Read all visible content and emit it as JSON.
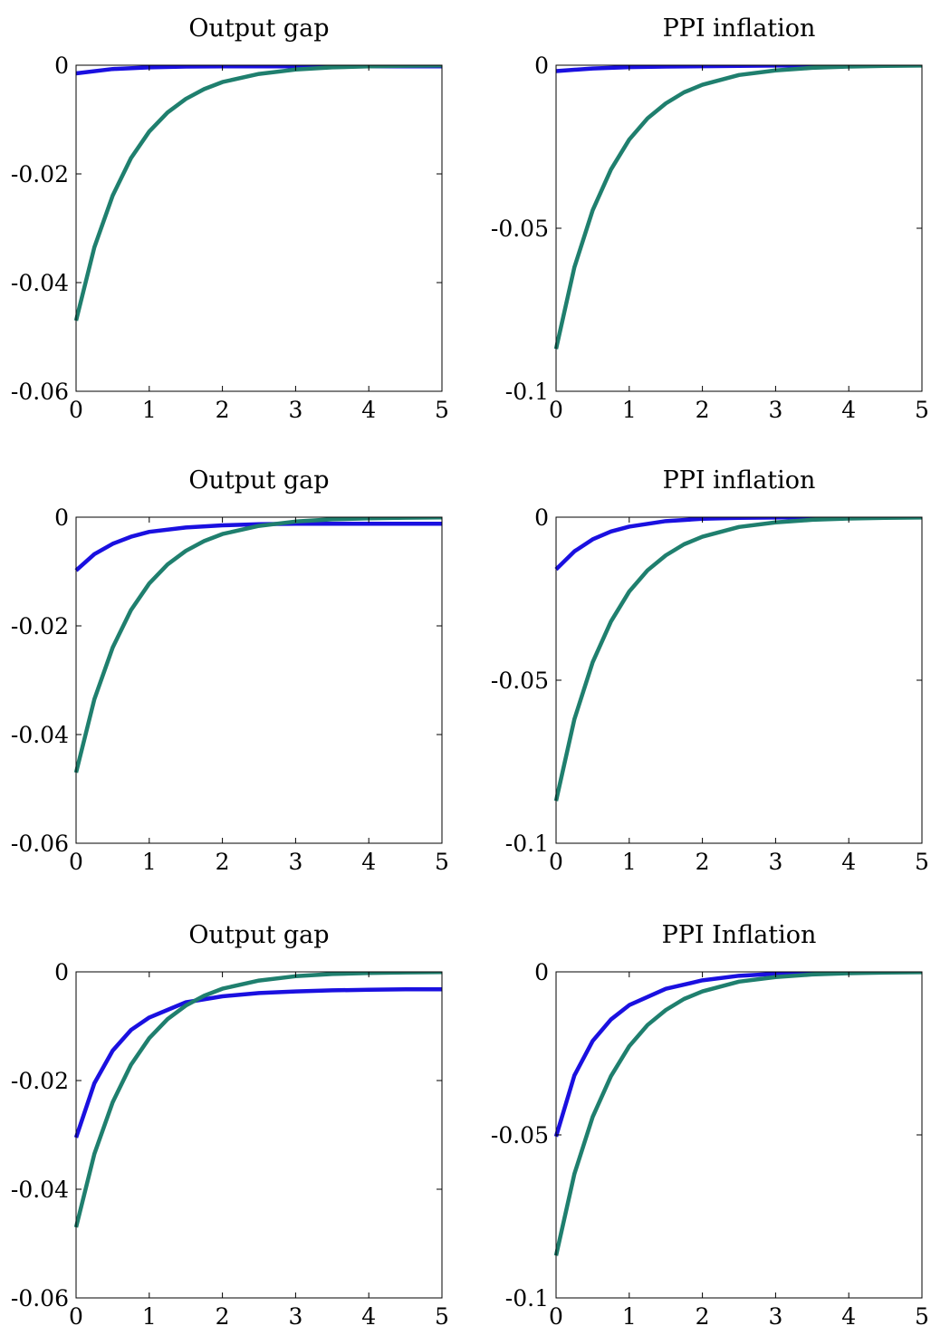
{
  "chart_data": [
    {
      "type": "line",
      "title": "Output gap",
      "xlim": [
        0,
        5
      ],
      "ylim": [
        -0.06,
        0
      ],
      "xticks": [
        "0",
        "1",
        "2",
        "3",
        "4",
        "5"
      ],
      "yticks": [
        "0",
        "-0.02",
        "-0.04",
        "-0.06"
      ],
      "series": [
        {
          "color": "#1a10e0",
          "x": [
            0,
            0.5,
            1,
            1.5,
            2,
            2.5,
            3,
            3.5,
            4,
            4.5,
            5
          ],
          "y": [
            -0.0015,
            -0.0007,
            -0.0004,
            -0.00025,
            -0.0002,
            -0.0002,
            -0.0002,
            -0.0002,
            -0.0002,
            -0.0002,
            -0.0002
          ]
        },
        {
          "color": "#1f7f6e",
          "x": [
            0,
            0.25,
            0.5,
            0.75,
            1,
            1.25,
            1.5,
            1.75,
            2,
            2.5,
            3,
            3.5,
            4,
            4.5,
            5
          ],
          "y": [
            -0.047,
            -0.0335,
            -0.024,
            -0.0171,
            -0.0122,
            -0.0087,
            -0.0062,
            -0.0044,
            -0.0031,
            -0.0016,
            -0.0008,
            -0.0004,
            -0.0002,
            -0.0001,
            -5e-05
          ]
        }
      ]
    },
    {
      "type": "line",
      "title": "PPI inflation",
      "xlim": [
        0,
        5
      ],
      "ylim": [
        -0.1,
        0
      ],
      "xticks": [
        "0",
        "1",
        "2",
        "3",
        "4",
        "5"
      ],
      "yticks": [
        "0",
        "-0.05",
        "-0.1"
      ],
      "series": [
        {
          "color": "#1a10e0",
          "x": [
            0,
            0.5,
            1,
            1.5,
            2,
            2.5,
            3,
            3.5,
            4,
            4.5,
            5
          ],
          "y": [
            -0.0018,
            -0.001,
            -0.0006,
            -0.0004,
            -0.0003,
            -0.0002,
            -0.0001,
            -0.0001,
            0,
            0,
            0
          ]
        },
        {
          "color": "#1f7f6e",
          "x": [
            0,
            0.25,
            0.5,
            0.75,
            1,
            1.25,
            1.5,
            1.75,
            2,
            2.5,
            3,
            3.5,
            4,
            4.5,
            5
          ],
          "y": [
            -0.087,
            -0.062,
            -0.0445,
            -0.032,
            -0.0228,
            -0.0163,
            -0.0117,
            -0.0083,
            -0.006,
            -0.003,
            -0.0016,
            -0.0008,
            -0.0004,
            -0.0002,
            -0.0001
          ]
        }
      ]
    },
    {
      "type": "line",
      "title": "Output gap",
      "xlim": [
        0,
        5
      ],
      "ylim": [
        -0.06,
        0
      ],
      "xticks": [
        "0",
        "1",
        "2",
        "3",
        "4",
        "5"
      ],
      "yticks": [
        "0",
        "-0.02",
        "-0.04",
        "-0.06"
      ],
      "series": [
        {
          "color": "#1a10e0",
          "x": [
            0,
            0.25,
            0.5,
            0.75,
            1,
            1.5,
            2,
            2.5,
            3,
            3.5,
            4,
            4.5,
            5
          ],
          "y": [
            -0.0098,
            -0.0068,
            -0.0049,
            -0.0036,
            -0.0027,
            -0.0019,
            -0.0015,
            -0.0013,
            -0.0012,
            -0.0012,
            -0.0012,
            -0.0012,
            -0.0012
          ]
        },
        {
          "color": "#1f7f6e",
          "x": [
            0,
            0.25,
            0.5,
            0.75,
            1,
            1.25,
            1.5,
            1.75,
            2,
            2.5,
            3,
            3.5,
            4,
            4.5,
            5
          ],
          "y": [
            -0.047,
            -0.0335,
            -0.024,
            -0.0171,
            -0.0122,
            -0.0087,
            -0.0062,
            -0.0044,
            -0.0031,
            -0.0016,
            -0.0008,
            -0.0004,
            -0.0002,
            -0.0001,
            -5e-05
          ]
        }
      ]
    },
    {
      "type": "line",
      "title": "PPI inflation",
      "xlim": [
        0,
        5
      ],
      "ylim": [
        -0.1,
        0
      ],
      "xticks": [
        "0",
        "1",
        "2",
        "3",
        "4",
        "5"
      ],
      "yticks": [
        "0",
        "-0.05",
        "-0.1"
      ],
      "series": [
        {
          "color": "#1a10e0",
          "x": [
            0,
            0.25,
            0.5,
            0.75,
            1,
            1.5,
            2,
            2.5,
            3,
            3.5,
            4,
            4.5,
            5
          ],
          "y": [
            -0.016,
            -0.0105,
            -0.0068,
            -0.0044,
            -0.0029,
            -0.0012,
            -0.0005,
            -0.0002,
            -0.0001,
            0,
            0,
            0,
            0
          ]
        },
        {
          "color": "#1f7f6e",
          "x": [
            0,
            0.25,
            0.5,
            0.75,
            1,
            1.25,
            1.5,
            1.75,
            2,
            2.5,
            3,
            3.5,
            4,
            4.5,
            5
          ],
          "y": [
            -0.087,
            -0.062,
            -0.0445,
            -0.032,
            -0.0228,
            -0.0163,
            -0.0117,
            -0.0083,
            -0.006,
            -0.003,
            -0.0016,
            -0.0008,
            -0.0004,
            -0.0002,
            -0.0001
          ]
        }
      ]
    },
    {
      "type": "line",
      "title": "Output gap",
      "xlim": [
        0,
        5
      ],
      "ylim": [
        -0.06,
        0
      ],
      "xticks": [
        "0",
        "1",
        "2",
        "3",
        "4",
        "5"
      ],
      "yticks": [
        "0",
        "-0.02",
        "-0.04",
        "-0.06"
      ],
      "series": [
        {
          "color": "#1a10e0",
          "x": [
            0,
            0.25,
            0.5,
            0.75,
            1,
            1.25,
            1.5,
            2,
            2.5,
            3,
            3.5,
            4,
            4.5,
            5
          ],
          "y": [
            -0.0305,
            -0.0205,
            -0.0145,
            -0.0107,
            -0.0084,
            -0.007,
            -0.0056,
            -0.0045,
            -0.0039,
            -0.0036,
            -0.0034,
            -0.0033,
            -0.0032,
            -0.0032
          ]
        },
        {
          "color": "#1f7f6e",
          "x": [
            0,
            0.25,
            0.5,
            0.75,
            1,
            1.25,
            1.5,
            1.75,
            2,
            2.5,
            3,
            3.5,
            4,
            4.5,
            5
          ],
          "y": [
            -0.047,
            -0.0335,
            -0.024,
            -0.0171,
            -0.0122,
            -0.0087,
            -0.0062,
            -0.0044,
            -0.0031,
            -0.0016,
            -0.0008,
            -0.0004,
            -0.0002,
            -0.0001,
            -5e-05
          ]
        }
      ]
    },
    {
      "type": "line",
      "title": "PPI Inflation",
      "xlim": [
        0,
        5
      ],
      "ylim": [
        -0.1,
        0
      ],
      "xticks": [
        "0",
        "1",
        "2",
        "3",
        "4",
        "5"
      ],
      "yticks": [
        "0",
        "-0.05",
        "-0.1"
      ],
      "series": [
        {
          "color": "#1a10e0",
          "x": [
            0,
            0.25,
            0.5,
            0.75,
            1,
            1.5,
            2,
            2.5,
            3,
            3.5,
            4,
            4.5,
            5
          ],
          "y": [
            -0.0505,
            -0.0318,
            -0.0212,
            -0.0146,
            -0.0102,
            -0.0052,
            -0.0026,
            -0.0012,
            -0.0006,
            -0.0003,
            -0.0001,
            0,
            0
          ]
        },
        {
          "color": "#1f7f6e",
          "x": [
            0,
            0.25,
            0.5,
            0.75,
            1,
            1.25,
            1.5,
            1.75,
            2,
            2.5,
            3,
            3.5,
            4,
            4.5,
            5
          ],
          "y": [
            -0.087,
            -0.062,
            -0.0445,
            -0.032,
            -0.0228,
            -0.0163,
            -0.0117,
            -0.0083,
            -0.006,
            -0.003,
            -0.0016,
            -0.0008,
            -0.0004,
            -0.0002,
            -0.0001
          ]
        }
      ]
    }
  ]
}
